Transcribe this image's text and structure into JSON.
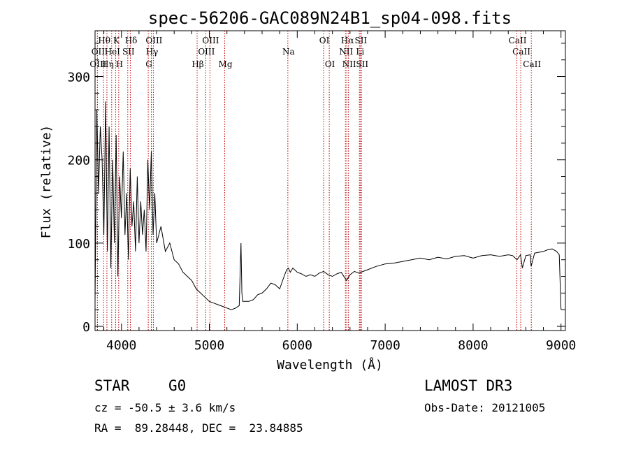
{
  "chart_data": {
    "type": "line",
    "title": "spec-56206-GAC089N24B1_sp04-098.fits",
    "xlabel": "Wavelength (Å)",
    "ylabel": "Flux (relative)",
    "xlim": [
      3700,
      9050
    ],
    "ylim": [
      -5,
      355
    ],
    "x_ticks": [
      4000,
      5000,
      6000,
      7000,
      8000,
      9000
    ],
    "x_tick_labels": [
      "4000",
      "5000",
      "6000",
      "7000",
      "8000",
      "9000"
    ],
    "y_ticks": [
      0,
      100,
      200,
      300
    ],
    "y_tick_labels": [
      "0",
      "100",
      "200",
      "300"
    ],
    "grid": false,
    "series": [
      {
        "name": "flux",
        "color": "#000000",
        "x": [
          3700,
          3720,
          3740,
          3760,
          3780,
          3800,
          3820,
          3840,
          3860,
          3880,
          3900,
          3920,
          3940,
          3960,
          3980,
          4000,
          4020,
          4040,
          4060,
          4080,
          4100,
          4120,
          4140,
          4160,
          4180,
          4200,
          4220,
          4240,
          4260,
          4280,
          4300,
          4320,
          4340,
          4360,
          4380,
          4400,
          4450,
          4500,
          4550,
          4600,
          4650,
          4700,
          4750,
          4800,
          4850,
          4900,
          4950,
          5000,
          5050,
          5100,
          5150,
          5200,
          5250,
          5300,
          5340,
          5360,
          5370,
          5380,
          5400,
          5450,
          5500,
          5550,
          5600,
          5650,
          5700,
          5750,
          5800,
          5850,
          5880,
          5900,
          5920,
          5950,
          6000,
          6050,
          6100,
          6150,
          6200,
          6250,
          6300,
          6350,
          6400,
          6450,
          6500,
          6560,
          6600,
          6650,
          6700,
          6750,
          6800,
          6900,
          7000,
          7100,
          7200,
          7300,
          7400,
          7500,
          7600,
          7700,
          7800,
          7900,
          8000,
          8100,
          8200,
          8300,
          8400,
          8450,
          8500,
          8540,
          8560,
          8600,
          8650,
          8660,
          8700,
          8800,
          8850,
          8900,
          8950,
          8980,
          9000
        ],
        "values": [
          30,
          260,
          160,
          240,
          200,
          110,
          270,
          90,
          240,
          70,
          200,
          100,
          230,
          60,
          180,
          130,
          210,
          110,
          160,
          80,
          190,
          120,
          150,
          90,
          180,
          100,
          150,
          110,
          140,
          90,
          200,
          140,
          210,
          110,
          160,
          100,
          120,
          90,
          100,
          80,
          75,
          65,
          60,
          55,
          45,
          40,
          35,
          30,
          28,
          26,
          24,
          22,
          20,
          22,
          25,
          100,
          40,
          30,
          30,
          30,
          32,
          38,
          40,
          45,
          52,
          50,
          45,
          60,
          68,
          70,
          65,
          70,
          65,
          63,
          60,
          62,
          60,
          64,
          66,
          62,
          60,
          63,
          65,
          55,
          62,
          66,
          64,
          66,
          68,
          72,
          75,
          76,
          78,
          80,
          82,
          80,
          83,
          81,
          84,
          85,
          82,
          85,
          86,
          84,
          86,
          85,
          80,
          86,
          70,
          85,
          86,
          72,
          88,
          90,
          92,
          93,
          90,
          86,
          20
        ]
      }
    ],
    "emission_line_color": "#c00000",
    "line_markers": [
      {
        "label": "Hθ",
        "wavelength": 3797,
        "tier": 1
      },
      {
        "label": "OII",
        "wavelength": 3727,
        "tier": 2
      },
      {
        "label": "OIII",
        "wavelength": 3727,
        "tier": 3
      },
      {
        "label": "K",
        "wavelength": 3934,
        "tier": 1
      },
      {
        "label": "HeI",
        "wavelength": 3889,
        "tier": 2
      },
      {
        "label": "Hη",
        "wavelength": 3835,
        "tier": 3
      },
      {
        "label": "Hδ",
        "wavelength": 4102,
        "tier": 1
      },
      {
        "label": "SII",
        "wavelength": 4072,
        "tier": 2
      },
      {
        "label": "H",
        "wavelength": 3969,
        "tier": 3
      },
      {
        "label": "OIII",
        "wavelength": 4363,
        "tier": 1
      },
      {
        "label": "Hγ",
        "wavelength": 4340,
        "tier": 2
      },
      {
        "label": "G",
        "wavelength": 4305,
        "tier": 3
      },
      {
        "label": "OIII",
        "wavelength": 5007,
        "tier": 1
      },
      {
        "label": "OIII",
        "wavelength": 4959,
        "tier": 2
      },
      {
        "label": "Hβ",
        "wavelength": 4861,
        "tier": 3
      },
      {
        "label": "Mg",
        "wavelength": 5175,
        "tier": 3
      },
      {
        "label": "Na",
        "wavelength": 5893,
        "tier": 2
      },
      {
        "label": "OI",
        "wavelength": 6300,
        "tier": 1
      },
      {
        "label": "OI",
        "wavelength": 6364,
        "tier": 3
      },
      {
        "label": "Hα",
        "wavelength": 6563,
        "tier": 1
      },
      {
        "label": "SII",
        "wavelength": 6716,
        "tier": 1
      },
      {
        "label": "NII",
        "wavelength": 6548,
        "tier": 2
      },
      {
        "label": "Li",
        "wavelength": 6707,
        "tier": 2
      },
      {
        "label": "NII",
        "wavelength": 6583,
        "tier": 3
      },
      {
        "label": "SII",
        "wavelength": 6731,
        "tier": 3
      },
      {
        "label": "CaII",
        "wavelength": 8498,
        "tier": 1
      },
      {
        "label": "CaII",
        "wavelength": 8542,
        "tier": 2
      },
      {
        "label": "CaII",
        "wavelength": 8662,
        "tier": 3
      }
    ]
  },
  "info": {
    "object_class": "STAR",
    "subclass": "G0",
    "survey": "LAMOST DR3",
    "redshift_text": "cz = -50.5 ± 3.6 km/s",
    "obs_date_text": "Obs-Date: 20121005",
    "coords_text": "RA =  89.28448, DEC =  23.84885"
  }
}
